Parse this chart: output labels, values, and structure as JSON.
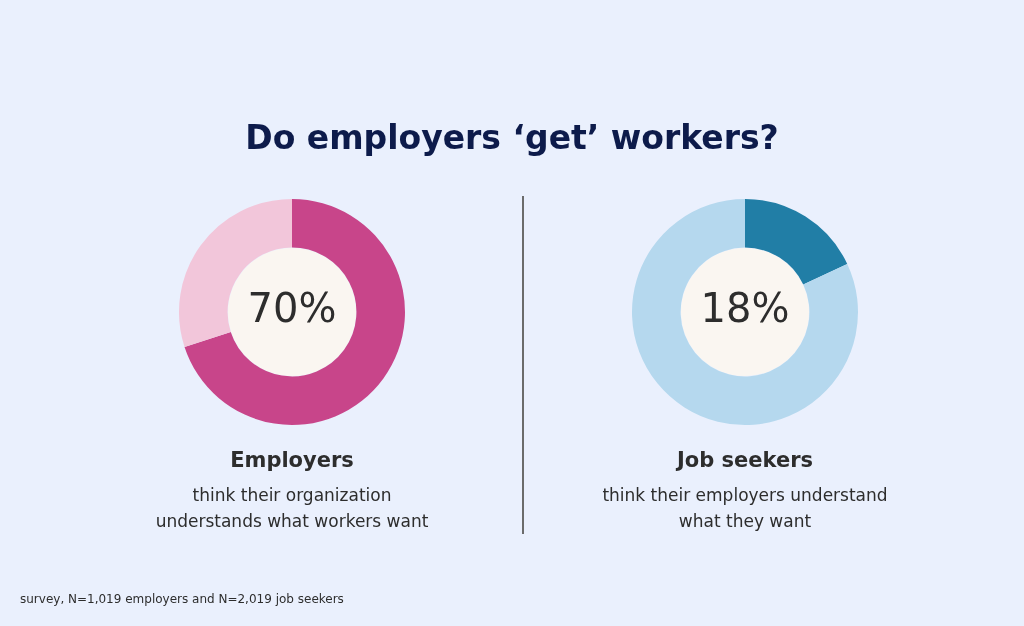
{
  "chart_data": [
    {
      "type": "donut",
      "title": "Do employers ‘get’ workers?",
      "categories": [
        null,
        null
      ],
      "values": [
        70,
        30
      ],
      "colors": [
        "#c8458a",
        "#f2c6da"
      ],
      "value_labels": [
        "70%",
        null
      ],
      "xlabel": "Employers",
      "annotations": [
        "think their organization understands what workers want",
        "survey, N=1,019 employers and N=2,019 job seekers"
      ],
      "legend": false
    },
    {
      "type": "donut",
      "categories": [
        null,
        null
      ],
      "values": [
        18,
        82
      ],
      "colors": [
        "#217ea6",
        "#b5d8ee"
      ],
      "value_labels": [
        "18%",
        null
      ],
      "xlabel": "Job seekers",
      "annotations": [
        "think their employers understand what they want"
      ],
      "legend": false
    }
  ]
}
